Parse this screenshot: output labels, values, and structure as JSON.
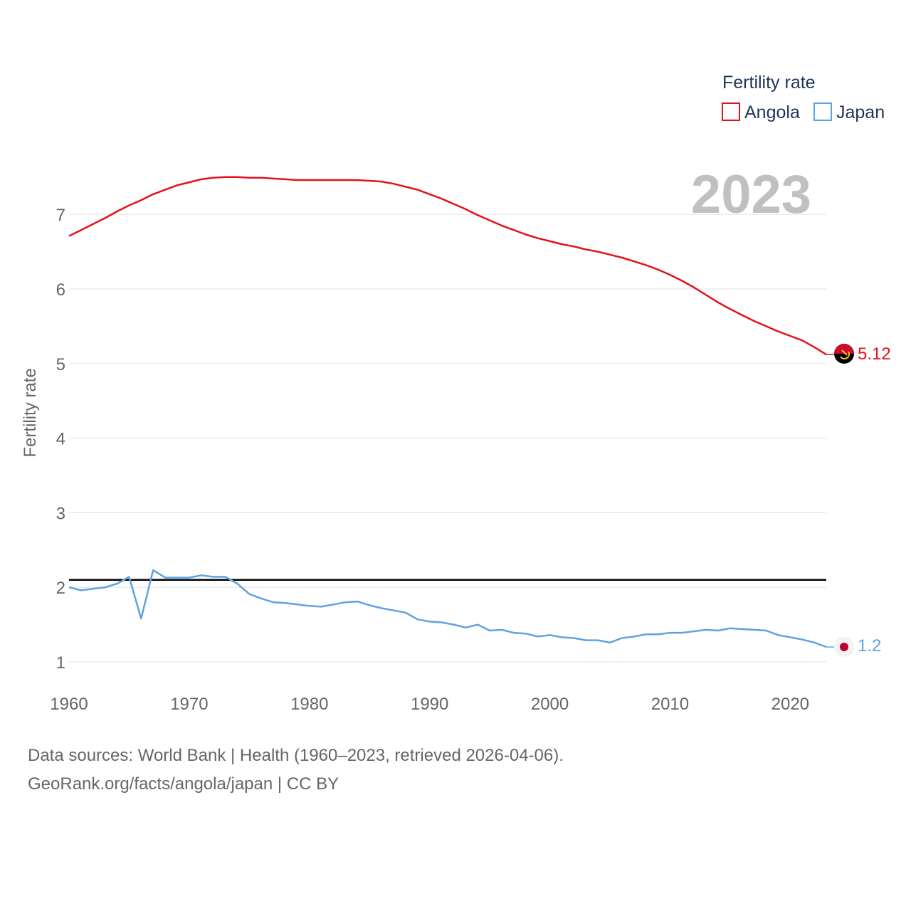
{
  "chart_data": {
    "type": "line",
    "x_start": 1960,
    "x_end": 2023,
    "ylabel": "Fertility rate",
    "year_display": "2023",
    "xlim": [
      1960,
      2023
    ],
    "ylim": [
      0.5,
      7.9
    ],
    "y_ticks": [
      1,
      2,
      3,
      4,
      5,
      6,
      7
    ],
    "x_ticks": [
      1960,
      1970,
      1980,
      1990,
      2000,
      2010,
      2020
    ],
    "legend": {
      "title": "Fertility rate",
      "position": "top-right"
    },
    "reference_line": {
      "value": 2.1,
      "color": "#000000"
    },
    "series": [
      {
        "name": "Angola",
        "color": "#e3121c",
        "end_label": "5.12",
        "flag": "angola-flag",
        "values": [
          6.71,
          6.79,
          6.87,
          6.95,
          7.04,
          7.12,
          7.19,
          7.27,
          7.33,
          7.39,
          7.43,
          7.47,
          7.49,
          7.5,
          7.5,
          7.49,
          7.49,
          7.48,
          7.47,
          7.46,
          7.46,
          7.46,
          7.46,
          7.46,
          7.46,
          7.45,
          7.44,
          7.41,
          7.37,
          7.33,
          7.27,
          7.21,
          7.14,
          7.07,
          6.99,
          6.92,
          6.85,
          6.79,
          6.73,
          6.68,
          6.64,
          6.6,
          6.57,
          6.53,
          6.5,
          6.46,
          6.42,
          6.37,
          6.32,
          6.26,
          6.19,
          6.11,
          6.02,
          5.92,
          5.82,
          5.73,
          5.65,
          5.57,
          5.5,
          5.43,
          5.37,
          5.31,
          5.22,
          5.12
        ]
      },
      {
        "name": "Japan",
        "color": "#5ea3e0",
        "end_label": "1.2",
        "flag": "japan-flag",
        "values": [
          2.0,
          1.96,
          1.98,
          2.0,
          2.05,
          2.14,
          1.58,
          2.23,
          2.13,
          2.13,
          2.13,
          2.16,
          2.14,
          2.14,
          2.05,
          1.91,
          1.85,
          1.8,
          1.79,
          1.77,
          1.75,
          1.74,
          1.77,
          1.8,
          1.81,
          1.76,
          1.72,
          1.69,
          1.66,
          1.57,
          1.54,
          1.53,
          1.5,
          1.46,
          1.5,
          1.42,
          1.43,
          1.39,
          1.38,
          1.34,
          1.36,
          1.33,
          1.32,
          1.29,
          1.29,
          1.26,
          1.32,
          1.34,
          1.37,
          1.37,
          1.39,
          1.39,
          1.41,
          1.43,
          1.42,
          1.45,
          1.44,
          1.43,
          1.42,
          1.36,
          1.33,
          1.3,
          1.26,
          1.2
        ]
      }
    ]
  },
  "source": {
    "line1": "Data sources: World Bank | Health (1960–2023, retrieved 2026-04-06).",
    "line2": "GeoRank.org/facts/angola/japan | CC BY"
  }
}
